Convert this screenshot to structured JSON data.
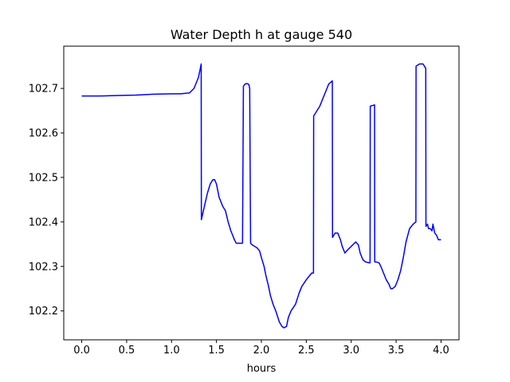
{
  "chart_data": {
    "type": "line",
    "title": "Water Depth h at gauge 540",
    "xlabel": "hours",
    "ylabel": "",
    "xlim": [
      -0.2,
      4.2
    ],
    "ylim": [
      102.135,
      102.795
    ],
    "xticks": [
      0.0,
      0.5,
      1.0,
      1.5,
      2.0,
      2.5,
      3.0,
      3.5,
      4.0
    ],
    "xtick_labels": [
      "0.0",
      "0.5",
      "1.0",
      "1.5",
      "2.0",
      "2.5",
      "3.0",
      "3.5",
      "4.0"
    ],
    "yticks": [
      102.2,
      102.3,
      102.4,
      102.5,
      102.6,
      102.7
    ],
    "ytick_labels": [
      "102.2",
      "102.3",
      "102.4",
      "102.5",
      "102.6",
      "102.7"
    ],
    "grid": false,
    "legend": "none",
    "series": [
      {
        "color": "#0000ff",
        "x": [
          0.0,
          0.2,
          0.4,
          0.6,
          0.8,
          1.0,
          1.1,
          1.2,
          1.25,
          1.3,
          1.33,
          1.332,
          1.36,
          1.4,
          1.43,
          1.46,
          1.48,
          1.5,
          1.53,
          1.57,
          1.6,
          1.63,
          1.66,
          1.7,
          1.72,
          1.77,
          1.79,
          1.8,
          1.82,
          1.84,
          1.86,
          1.87,
          1.88,
          1.9,
          1.95,
          1.98,
          2.0,
          2.03,
          2.05,
          2.08,
          2.1,
          2.13,
          2.16,
          2.2,
          2.23,
          2.25,
          2.28,
          2.3,
          2.33,
          2.38,
          2.42,
          2.45,
          2.5,
          2.56,
          2.58,
          2.582,
          2.65,
          2.7,
          2.75,
          2.79,
          2.792,
          2.82,
          2.85,
          2.88,
          2.9,
          2.93,
          2.95,
          3.0,
          3.05,
          3.08,
          3.1,
          3.13,
          3.16,
          3.2,
          3.21,
          3.212,
          3.26,
          3.262,
          3.28,
          3.31,
          3.33,
          3.36,
          3.39,
          3.42,
          3.44,
          3.46,
          3.49,
          3.52,
          3.55,
          3.58,
          3.61,
          3.65,
          3.69,
          3.72,
          3.722,
          3.76,
          3.8,
          3.83,
          3.832,
          3.85,
          3.86,
          3.88,
          3.9,
          3.91,
          3.92,
          3.93,
          3.95,
          3.97,
          4.0
        ],
        "y": [
          102.683,
          102.683,
          102.684,
          102.685,
          102.687,
          102.688,
          102.688,
          102.69,
          102.7,
          102.725,
          102.755,
          102.405,
          102.43,
          102.465,
          102.485,
          102.495,
          102.495,
          102.485,
          102.455,
          102.435,
          102.425,
          102.4,
          102.38,
          102.36,
          102.352,
          102.352,
          102.352,
          102.705,
          102.71,
          102.711,
          102.709,
          102.7,
          102.352,
          102.348,
          102.342,
          102.335,
          102.32,
          102.3,
          102.28,
          102.255,
          102.235,
          102.215,
          102.2,
          102.175,
          102.165,
          102.162,
          102.165,
          102.185,
          102.2,
          102.215,
          102.24,
          102.255,
          102.27,
          102.285,
          102.285,
          102.638,
          102.66,
          102.685,
          102.71,
          102.717,
          102.365,
          102.375,
          102.375,
          102.36,
          102.345,
          102.33,
          102.335,
          102.345,
          102.355,
          102.348,
          102.33,
          102.315,
          102.31,
          102.308,
          102.308,
          102.66,
          102.663,
          102.31,
          102.31,
          102.308,
          102.3,
          102.285,
          102.27,
          102.26,
          102.25,
          102.25,
          102.255,
          102.27,
          102.29,
          102.32,
          102.355,
          102.385,
          102.395,
          102.4,
          102.75,
          102.755,
          102.755,
          102.745,
          102.39,
          102.395,
          102.385,
          102.385,
          102.38,
          102.395,
          102.385,
          102.375,
          102.37,
          102.36,
          102.36
        ]
      }
    ]
  }
}
